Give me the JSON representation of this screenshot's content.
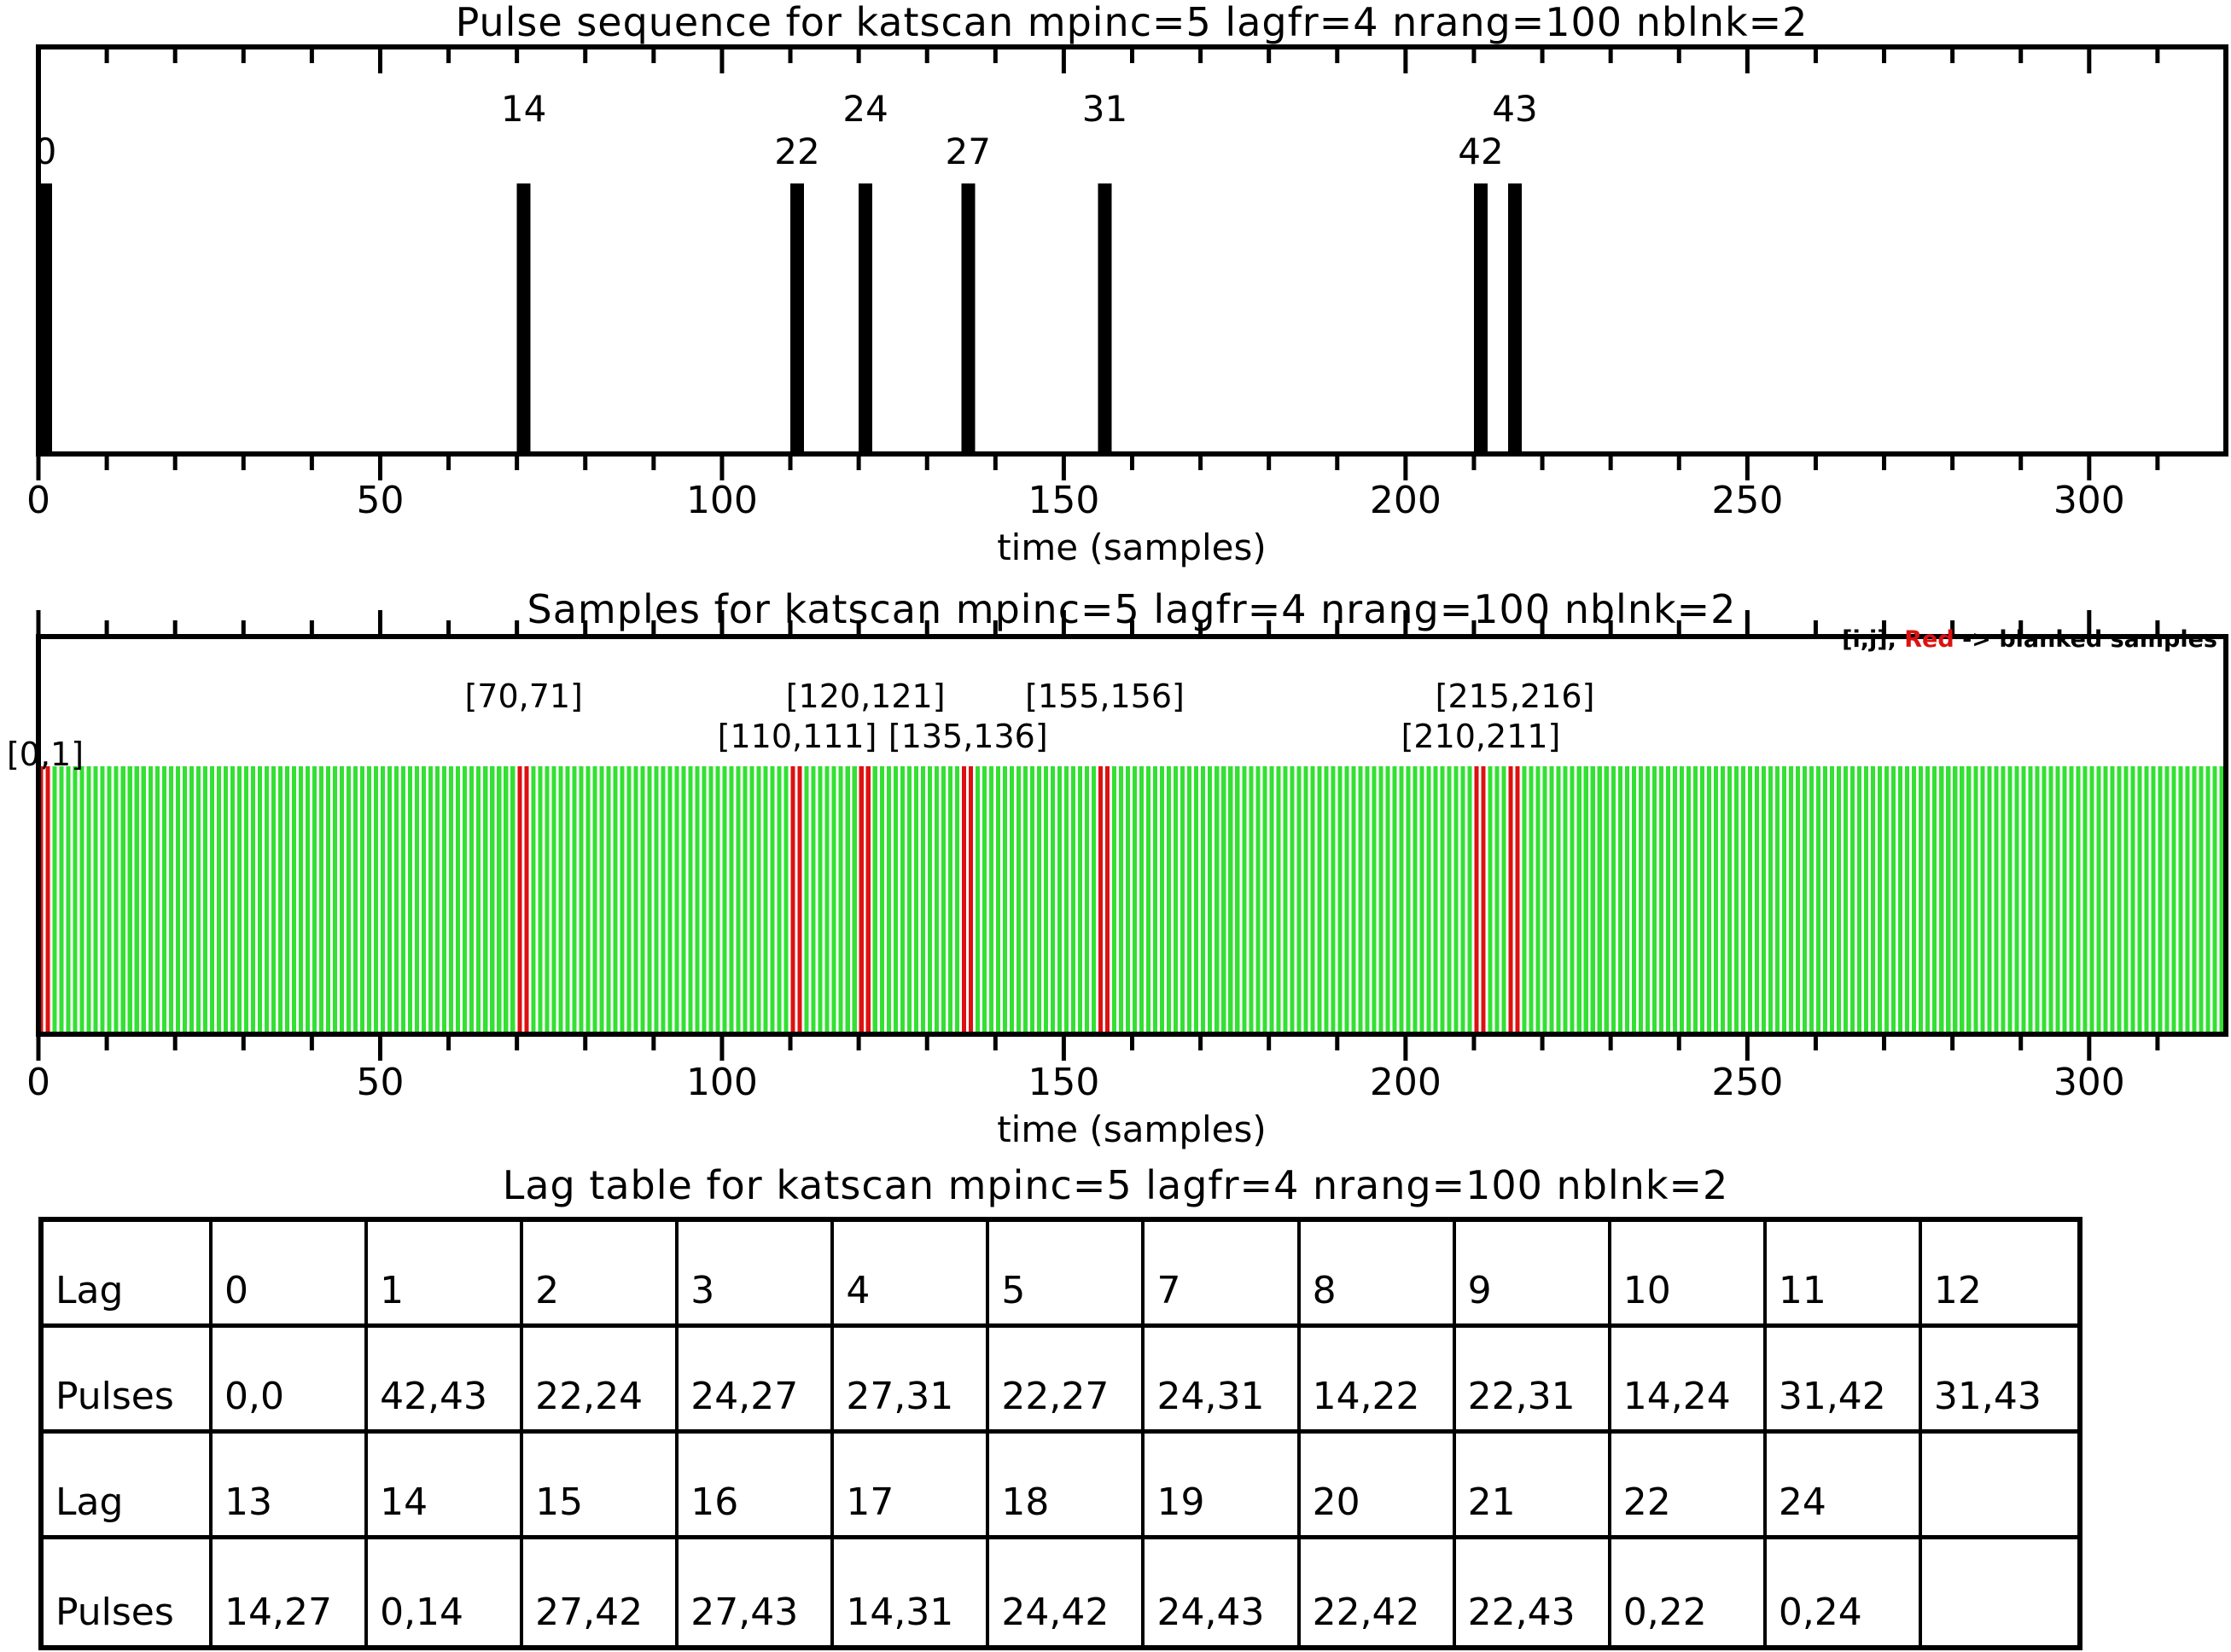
{
  "figure": {
    "background": "#ffffff",
    "axis_color": "#000000"
  },
  "chart_data": [
    {
      "type": "bar",
      "name": "pulse-sequence",
      "title": "Pulse sequence for katscan mpinc=5 lagfr=4 nrang=100 nblnk=2",
      "xlabel": "time (samples)",
      "xlim": [
        0,
        320
      ],
      "x_major_ticks": [
        0,
        50,
        100,
        150,
        200,
        250,
        300
      ],
      "x_minor_step": 10,
      "bar_color": "#000000",
      "mpinc": 5,
      "pulses": [
        {
          "label": "0",
          "sample": 0,
          "label_row": "low"
        },
        {
          "label": "14",
          "sample": 70,
          "label_row": "high"
        },
        {
          "label": "22",
          "sample": 110,
          "label_row": "low"
        },
        {
          "label": "24",
          "sample": 120,
          "label_row": "high"
        },
        {
          "label": "27",
          "sample": 135,
          "label_row": "low"
        },
        {
          "label": "31",
          "sample": 155,
          "label_row": "high"
        },
        {
          "label": "42",
          "sample": 210,
          "label_row": "low"
        },
        {
          "label": "43",
          "sample": 215,
          "label_row": "high"
        }
      ]
    },
    {
      "type": "bar",
      "name": "samples",
      "title": "Samples for katscan mpinc=5 lagfr=4 nrang=100 nblnk=2",
      "xlabel": "time (samples)",
      "xlim": [
        0,
        320
      ],
      "x_major_ticks": [
        0,
        50,
        100,
        150,
        200,
        250,
        300
      ],
      "x_minor_step": 10,
      "n_samples": 320,
      "sample_color": "#33e033",
      "blanked_color": "#dd1111",
      "blanked_samples": [
        0,
        1,
        70,
        71,
        110,
        111,
        120,
        121,
        135,
        136,
        155,
        156,
        210,
        211,
        215,
        216
      ],
      "legend": "[i,j], Red -> blanked samples",
      "legend_parts": {
        "prefix": "[i,j], ",
        "red": "Red",
        "suffix": " -> blanked samples"
      },
      "annotations": [
        {
          "text": "[0,1]",
          "center_sample": 1,
          "row": "lowest"
        },
        {
          "text": "[70,71]",
          "center_sample": 71,
          "row": "high"
        },
        {
          "text": "[110,111]",
          "center_sample": 111,
          "row": "low"
        },
        {
          "text": "[120,121]",
          "center_sample": 121,
          "row": "high"
        },
        {
          "text": "[135,136]",
          "center_sample": 136,
          "row": "low"
        },
        {
          "text": "[155,156]",
          "center_sample": 156,
          "row": "high"
        },
        {
          "text": "[210,211]",
          "center_sample": 211,
          "row": "low"
        },
        {
          "text": "[215,216]",
          "center_sample": 216,
          "row": "high"
        }
      ]
    },
    {
      "type": "table",
      "name": "lag-table",
      "title": "Lag table for katscan mpinc=5 lagfr=4 nrang=100 nblnk=2",
      "rows": [
        {
          "label": "Lag",
          "cells": [
            "0",
            "1",
            "2",
            "3",
            "4",
            "5",
            "7",
            "8",
            "9",
            "10",
            "11",
            "12"
          ]
        },
        {
          "label": "Pulses",
          "cells": [
            "0,0",
            "42,43",
            "22,24",
            "24,27",
            "27,31",
            "22,27",
            "24,31",
            "14,22",
            "22,31",
            "14,24",
            "31,42",
            "31,43"
          ]
        },
        {
          "label": "Lag",
          "cells": [
            "13",
            "14",
            "15",
            "16",
            "17",
            "18",
            "19",
            "20",
            "21",
            "22",
            "24",
            ""
          ]
        },
        {
          "label": "Pulses",
          "cells": [
            "14,27",
            "0,14",
            "27,42",
            "27,43",
            "14,31",
            "24,42",
            "24,43",
            "22,42",
            "22,43",
            "0,22",
            "0,24",
            ""
          ]
        }
      ]
    }
  ]
}
